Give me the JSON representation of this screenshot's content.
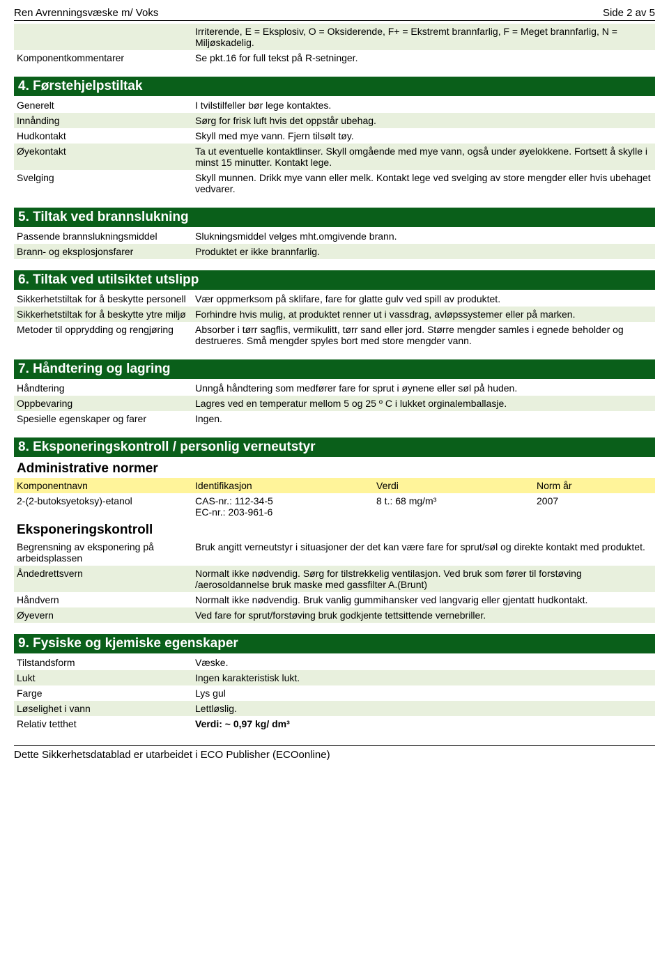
{
  "colors": {
    "section_bg": "#0a5f1a",
    "section_fg": "#ffffff",
    "row_odd_bg": "#e8f0dd",
    "table_head_bg": "#fff49a",
    "text": "#000000"
  },
  "header": {
    "left": "Ren Avrenningsvæske m/ Voks",
    "right": "Side 2 av 5"
  },
  "intro_rows": [
    {
      "label": "",
      "value": "Irriterende, E = Eksplosiv, O = Oksiderende, F+ = Ekstremt brannfarlig, F = Meget brannfarlig, N = Miljøskadelig.",
      "odd": true
    },
    {
      "label": "Komponentkommentarer",
      "value": "Se pkt.16 for full tekst på R-setninger.",
      "odd": false
    }
  ],
  "section4": {
    "title": "4. Førstehjelpstiltak",
    "rows": [
      {
        "label": "Generelt",
        "value": "I tvilstilfeller bør lege kontaktes.",
        "odd": false
      },
      {
        "label": "Innånding",
        "value": "Sørg for frisk luft hvis det oppstår ubehag.",
        "odd": true
      },
      {
        "label": "Hudkontakt",
        "value": "Skyll med mye vann. Fjern tilsølt tøy.",
        "odd": false
      },
      {
        "label": "Øyekontakt",
        "value": "Ta ut eventuelle kontaktlinser. Skyll omgående med mye vann, også under øyelokkene. Fortsett å skylle i minst 15 minutter. Kontakt lege.",
        "odd": true
      },
      {
        "label": "Svelging",
        "value": "Skyll munnen. Drikk mye vann eller melk. Kontakt lege ved svelging av store mengder eller hvis ubehaget vedvarer.",
        "odd": false
      }
    ]
  },
  "section5": {
    "title": "5. Tiltak ved brannslukning",
    "rows": [
      {
        "label": "Passende brannslukningsmiddel",
        "value": "Slukningsmiddel velges mht.omgivende brann.",
        "odd": false
      },
      {
        "label": "Brann- og eksplosjonsfarer",
        "value": "Produktet er ikke brannfarlig.",
        "odd": true
      }
    ]
  },
  "section6": {
    "title": "6. Tiltak ved utilsiktet utslipp",
    "rows": [
      {
        "label": "Sikkerhetstiltak for å beskytte personell",
        "value": "Vær oppmerksom på sklifare, fare for glatte gulv ved spill av produktet.",
        "odd": false
      },
      {
        "label": "Sikkerhetstiltak for å beskytte ytre miljø",
        "value": "Forhindre hvis mulig, at produktet renner ut i vassdrag, avløpssystemer eller på marken.",
        "odd": true
      },
      {
        "label": "Metoder til opprydding og rengjøring",
        "value": "Absorber i tørr sagflis, vermikulitt, tørr sand eller jord. Større mengder samles i egnede beholder og destrueres. Små mengder spyles bort med store mengder vann.",
        "odd": false
      }
    ]
  },
  "section7": {
    "title": "7. Håndtering og lagring",
    "rows": [
      {
        "label": "Håndtering",
        "value": "Unngå håndtering som medfører fare for sprut i øynene eller søl på huden.",
        "odd": false
      },
      {
        "label": "Oppbevaring",
        "value": "Lagres ved en temperatur mellom 5 og 25 º C i lukket orginalemballasje.",
        "odd": true
      },
      {
        "label": "Spesielle egenskaper og farer",
        "value": "Ingen.",
        "odd": false
      }
    ]
  },
  "section8": {
    "title": "8. Eksponeringskontroll / personlig verneutstyr",
    "sub1": "Administrative normer",
    "table": {
      "headers": [
        "Komponentnavn",
        "Identifikasjon",
        "Verdi",
        "Norm år"
      ],
      "row": {
        "c1": "2-(2-butoksyetoksy)-etanol",
        "c2": "CAS-nr.: 112-34-5\nEC-nr.: 203-961-6",
        "c3": "8 t.: 68 mg/m³",
        "c4": "2007"
      }
    },
    "sub2": "Eksponeringskontroll",
    "rows": [
      {
        "label": "Begrensning av eksponering på arbeidsplassen",
        "value": "Bruk angitt verneutstyr i situasjoner der det kan være fare for sprut/søl og direkte kontakt med produktet.",
        "odd": false
      },
      {
        "label": "Åndedrettsvern",
        "value": "Normalt ikke nødvendig. Sørg for tilstrekkelig ventilasjon. Ved bruk som fører til forstøving /aerosoldannelse bruk maske med gassfilter A.(Brunt)",
        "odd": true
      },
      {
        "label": "Håndvern",
        "value": "Normalt ikke nødvendig. Bruk vanlig gummihansker ved langvarig eller gjentatt hudkontakt.",
        "odd": false
      },
      {
        "label": "Øyevern",
        "value": "Ved fare for sprut/forstøving bruk godkjente tettsittende vernebriller.",
        "odd": true
      }
    ]
  },
  "section9": {
    "title": "9. Fysiske og kjemiske egenskaper",
    "rows": [
      {
        "label": "Tilstandsform",
        "value": "Væske.",
        "odd": false
      },
      {
        "label": "Lukt",
        "value": "Ingen karakteristisk lukt.",
        "odd": true
      },
      {
        "label": "Farge",
        "value": "Lys gul",
        "odd": false
      },
      {
        "label": "Løselighet i vann",
        "value": "Lettløslig.",
        "odd": true
      },
      {
        "label": "Relativ tetthet",
        "value": "Verdi: ~ 0,97 kg/ dm³",
        "odd": false,
        "bold": true
      }
    ]
  },
  "footer": "Dette Sikkerhetsdatablad er utarbeidet i ECO Publisher (ECOonline)"
}
